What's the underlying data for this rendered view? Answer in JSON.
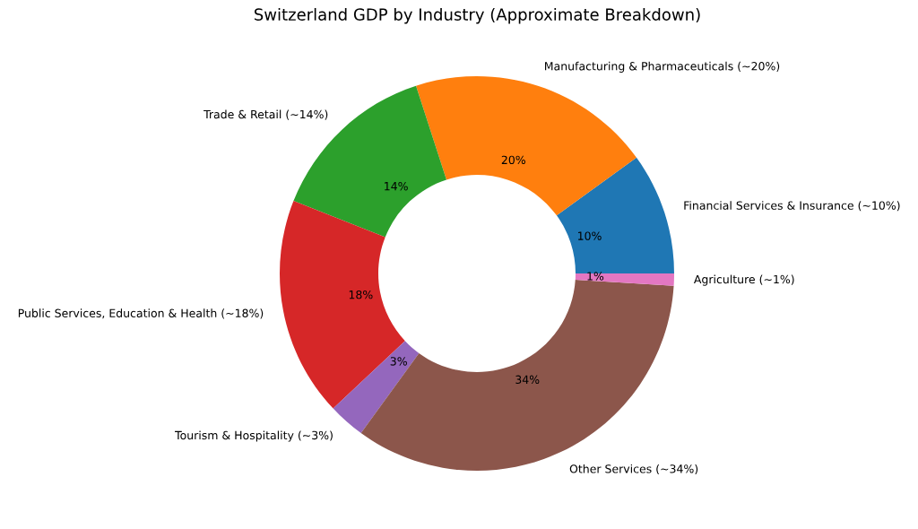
{
  "chart_data": {
    "type": "donut",
    "title": "Switzerland GDP by Industry (Approximate Breakdown)",
    "categories": [
      "Financial Services & Insurance (~10%)",
      "Manufacturing & Pharmaceuticals (~20%)",
      "Trade & Retail (~14%)",
      "Public Services, Education & Health (~18%)",
      "Tourism & Hospitality (~3%)",
      "Other Services (~34%)",
      "Agriculture (~1%)"
    ],
    "values": [
      10,
      20,
      14,
      18,
      3,
      34,
      1
    ],
    "colors": [
      "#1f77b4",
      "#ff7f0e",
      "#2ca02c",
      "#d62728",
      "#9467bd",
      "#8c564b",
      "#e377c2"
    ],
    "value_labels": [
      "10%",
      "20%",
      "14%",
      "18%",
      "3%",
      "34%",
      "1%"
    ]
  }
}
